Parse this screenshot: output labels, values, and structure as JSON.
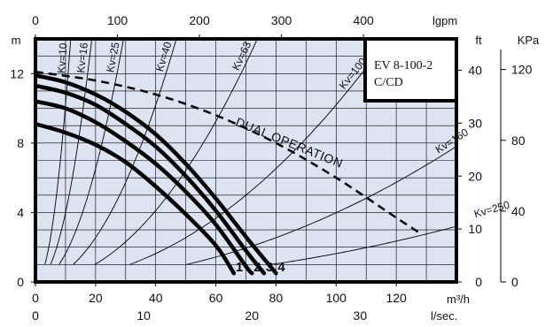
{
  "chart_data": {
    "type": "line",
    "model_box": {
      "line1": "EV 8-100-2",
      "line2": "C/CD"
    },
    "x_axis": {
      "unit": "m³/h",
      "range": [
        0,
        140
      ],
      "ticks": [
        0,
        20,
        40,
        60,
        80,
        100,
        120
      ]
    },
    "x_axis_top": {
      "unit": "lgpm",
      "range": [
        0,
        513.3
      ],
      "ticks": [
        0,
        100,
        200,
        300,
        400
      ]
    },
    "x_axis_bottom2": {
      "unit": "l/sec.",
      "range": [
        0,
        38.9
      ],
      "ticks": [
        0,
        10,
        20,
        30
      ]
    },
    "y_axis": {
      "unit": "m",
      "range": [
        0,
        14
      ],
      "ticks": [
        0,
        4,
        8,
        12
      ]
    },
    "y_axis_ft": {
      "unit": "ft",
      "range": [
        0,
        45.93
      ],
      "ticks": [
        0,
        10,
        20,
        30,
        40
      ]
    },
    "y_axis_kpa": {
      "unit": "KPa",
      "range": [
        0,
        137.3
      ],
      "ticks": [
        0,
        40,
        80,
        120
      ]
    },
    "grid": true,
    "pump_curves": [
      {
        "name": "1",
        "points": [
          [
            0,
            9.1
          ],
          [
            10,
            8.6
          ],
          [
            20,
            7.9
          ],
          [
            30,
            6.9
          ],
          [
            40,
            5.5
          ],
          [
            50,
            3.9
          ],
          [
            60,
            2.1
          ],
          [
            66,
            0.5
          ]
        ]
      },
      {
        "name": "2",
        "points": [
          [
            0,
            10.4
          ],
          [
            10,
            10.0
          ],
          [
            20,
            9.2
          ],
          [
            30,
            8.1
          ],
          [
            40,
            6.8
          ],
          [
            50,
            5.2
          ],
          [
            60,
            3.3
          ],
          [
            70,
            0.9
          ],
          [
            72,
            0.5
          ]
        ]
      },
      {
        "name": "3",
        "points": [
          [
            0,
            11.3
          ],
          [
            10,
            10.9
          ],
          [
            20,
            10.2
          ],
          [
            30,
            9.1
          ],
          [
            40,
            7.8
          ],
          [
            50,
            6.1
          ],
          [
            60,
            4.1
          ],
          [
            70,
            1.8
          ],
          [
            76,
            0.5
          ]
        ]
      },
      {
        "name": "4",
        "points": [
          [
            0,
            11.9
          ],
          [
            10,
            11.5
          ],
          [
            20,
            10.8
          ],
          [
            30,
            9.8
          ],
          [
            40,
            8.5
          ],
          [
            50,
            6.8
          ],
          [
            60,
            4.8
          ],
          [
            70,
            2.6
          ],
          [
            80,
            0.5
          ]
        ]
      }
    ],
    "dual_operation": {
      "label": "DUAL OPERATION",
      "points": [
        [
          0,
          12.1
        ],
        [
          20,
          11.6
        ],
        [
          40,
          10.8
        ],
        [
          60,
          9.6
        ],
        [
          80,
          8.0
        ],
        [
          100,
          6.0
        ],
        [
          120,
          3.7
        ],
        [
          128,
          2.8
        ]
      ]
    },
    "kv_curves": [
      {
        "label": "Kv=10",
        "kv": 10
      },
      {
        "label": "Kv=16",
        "kv": 16
      },
      {
        "label": "Kv=25",
        "kv": 25
      },
      {
        "label": "Kv=40",
        "kv": 40
      },
      {
        "label": "Kv=63",
        "kv": 63
      },
      {
        "label": "Kv=100",
        "kv": 100
      },
      {
        "label": "Kv=160",
        "kv": 160
      },
      {
        "label": "Kv=250",
        "kv": 250
      }
    ]
  }
}
